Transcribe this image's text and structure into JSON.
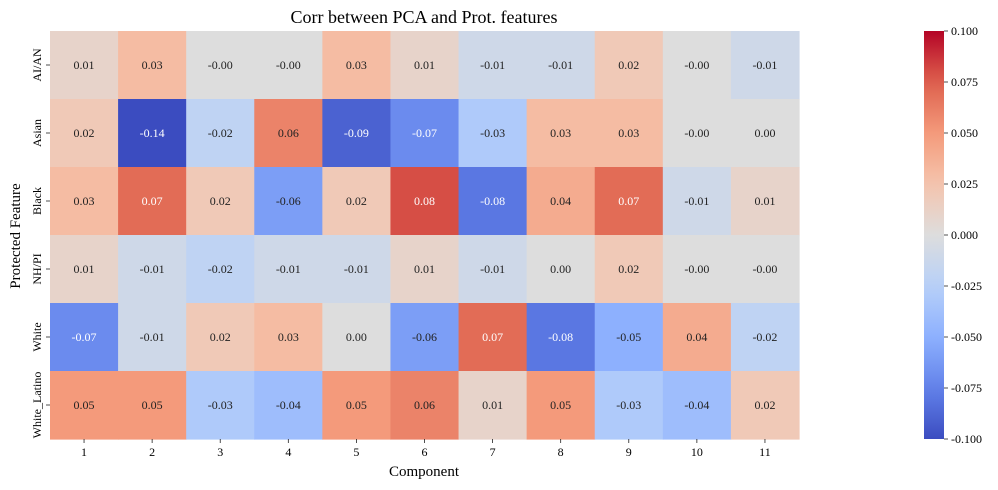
{
  "chart_data": {
    "type": "heatmap",
    "title": "Corr between PCA and Prot. features",
    "xlabel": "Component",
    "ylabel": "Protected Feature",
    "x_categories": [
      "1",
      "2",
      "3",
      "4",
      "5",
      "6",
      "7",
      "8",
      "9",
      "10",
      "11"
    ],
    "y_categories": [
      "AI/AN",
      "Asian",
      "Black",
      "NH/PI",
      "White",
      "White_Latino"
    ],
    "values": [
      [
        0.01,
        0.03,
        -0.0,
        -0.0,
        0.03,
        0.01,
        -0.01,
        -0.01,
        0.02,
        -0.0,
        -0.01
      ],
      [
        0.02,
        -0.14,
        -0.02,
        0.06,
        -0.09,
        -0.07,
        -0.03,
        0.03,
        0.03,
        -0.0,
        0.0
      ],
      [
        0.03,
        0.07,
        0.02,
        -0.06,
        0.02,
        0.08,
        -0.08,
        0.04,
        0.07,
        -0.01,
        0.01
      ],
      [
        0.01,
        -0.01,
        -0.02,
        -0.01,
        -0.01,
        0.01,
        -0.01,
        0.0,
        0.02,
        -0.0,
        -0.0
      ],
      [
        -0.07,
        -0.01,
        0.02,
        0.03,
        0.0,
        -0.06,
        0.07,
        -0.08,
        -0.05,
        0.04,
        -0.02
      ],
      [
        0.05,
        0.05,
        -0.03,
        -0.04,
        0.05,
        0.06,
        0.01,
        0.05,
        -0.03,
        -0.04,
        0.02
      ]
    ],
    "cell_labels": [
      [
        "0.01",
        "0.03",
        "-0.00",
        "-0.00",
        "0.03",
        "0.01",
        "-0.01",
        "-0.01",
        "0.02",
        "-0.00",
        "-0.01"
      ],
      [
        "0.02",
        "-0.14",
        "-0.02",
        "0.06",
        "-0.09",
        "-0.07",
        "-0.03",
        "0.03",
        "0.03",
        "-0.00",
        "0.00"
      ],
      [
        "0.03",
        "0.07",
        "0.02",
        "-0.06",
        "0.02",
        "0.08",
        "-0.08",
        "0.04",
        "0.07",
        "-0.01",
        "0.01"
      ],
      [
        "0.01",
        "-0.01",
        "-0.02",
        "-0.01",
        "-0.01",
        "0.01",
        "-0.01",
        "0.00",
        "0.02",
        "-0.00",
        "-0.00"
      ],
      [
        "-0.07",
        "-0.01",
        "0.02",
        "0.03",
        "0.00",
        "-0.06",
        "0.07",
        "-0.08",
        "-0.05",
        "0.04",
        "-0.02"
      ],
      [
        "0.05",
        "0.05",
        "-0.03",
        "-0.04",
        "0.05",
        "0.06",
        "0.01",
        "0.05",
        "-0.03",
        "-0.04",
        "0.02"
      ]
    ],
    "colormap": "coolwarm",
    "vmin": -0.1,
    "vmax": 0.1,
    "colorbar_ticks": [
      "-0.100",
      "-0.075",
      "-0.050",
      "-0.025",
      "0.000",
      "0.025",
      "0.050",
      "0.075",
      "0.100"
    ],
    "colorbar_tick_values": [
      -0.1,
      -0.075,
      -0.05,
      -0.025,
      0,
      0.025,
      0.05,
      0.075,
      0.1
    ]
  }
}
